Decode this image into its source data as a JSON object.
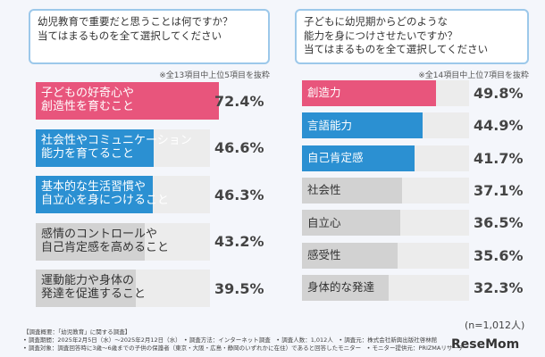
{
  "chart_data": [
    {
      "type": "bar",
      "title": "幼児教育で重要だと思うことは何ですか？\n当てはまるものを全て選択してください",
      "note": "※全13項目中上位5項目を抜粋",
      "categories": [
        "子どもの好奇心や\n創造性を育むこと",
        "社会性やコミュニケーション\n能力を育てること",
        "基本的な生活習慣や\n自立心を身につけること",
        "感情のコントロールや\n自己肯定感を高めること",
        "運動能力や身体の\n発達を促進すること"
      ],
      "values": [
        72.4,
        46.6,
        46.3,
        43.2,
        39.5
      ],
      "value_labels": [
        "72.4%",
        "46.6%",
        "46.3%",
        "43.2%",
        "39.5%"
      ],
      "colors": [
        "#e8557c",
        "#2b90d2",
        "#2b90d2",
        "#d2d2d2",
        "#d2d2d2"
      ]
    },
    {
      "type": "bar",
      "title": "子どもに幼児期からどのような\n能力を身につけさせたいですか？\n当てはまるものを全て選択してください",
      "note": "※全14項目中上位7項目を抜粋",
      "categories": [
        "創造力",
        "言語能力",
        "自己肯定感",
        "社会性",
        "自立心",
        "感受性",
        "身体的な発達"
      ],
      "values": [
        49.8,
        44.9,
        41.7,
        37.1,
        36.5,
        35.6,
        32.3
      ],
      "value_labels": [
        "49.8%",
        "44.9%",
        "41.7%",
        "37.1%",
        "36.5%",
        "35.6%",
        "32.3%"
      ],
      "colors": [
        "#e8557c",
        "#2b90d2",
        "#2b90d2",
        "#d2d2d2",
        "#d2d2d2",
        "#d2d2d2",
        "#d2d2d2"
      ]
    }
  ],
  "sample_note": "(n=1,012人)",
  "footer": [
    "【調査概要：「幼児教育」に関する調査】",
    "• 調査期間：2025年2月5日（水）〜2025年2月12日（水）　• 調査方法：インターネット調査　• 調査人数：1,012人　• 調査元：株式会社新興出版社啓林館",
    "• 調査対象：調査回答時に3歳〜6歳までの子供の保護者（東京・大阪・広島・静岡のいずれかに在住）であると回答したモニター　• モニター提供元：PRIZMAリサーチ"
  ],
  "logo": "ReseMom"
}
